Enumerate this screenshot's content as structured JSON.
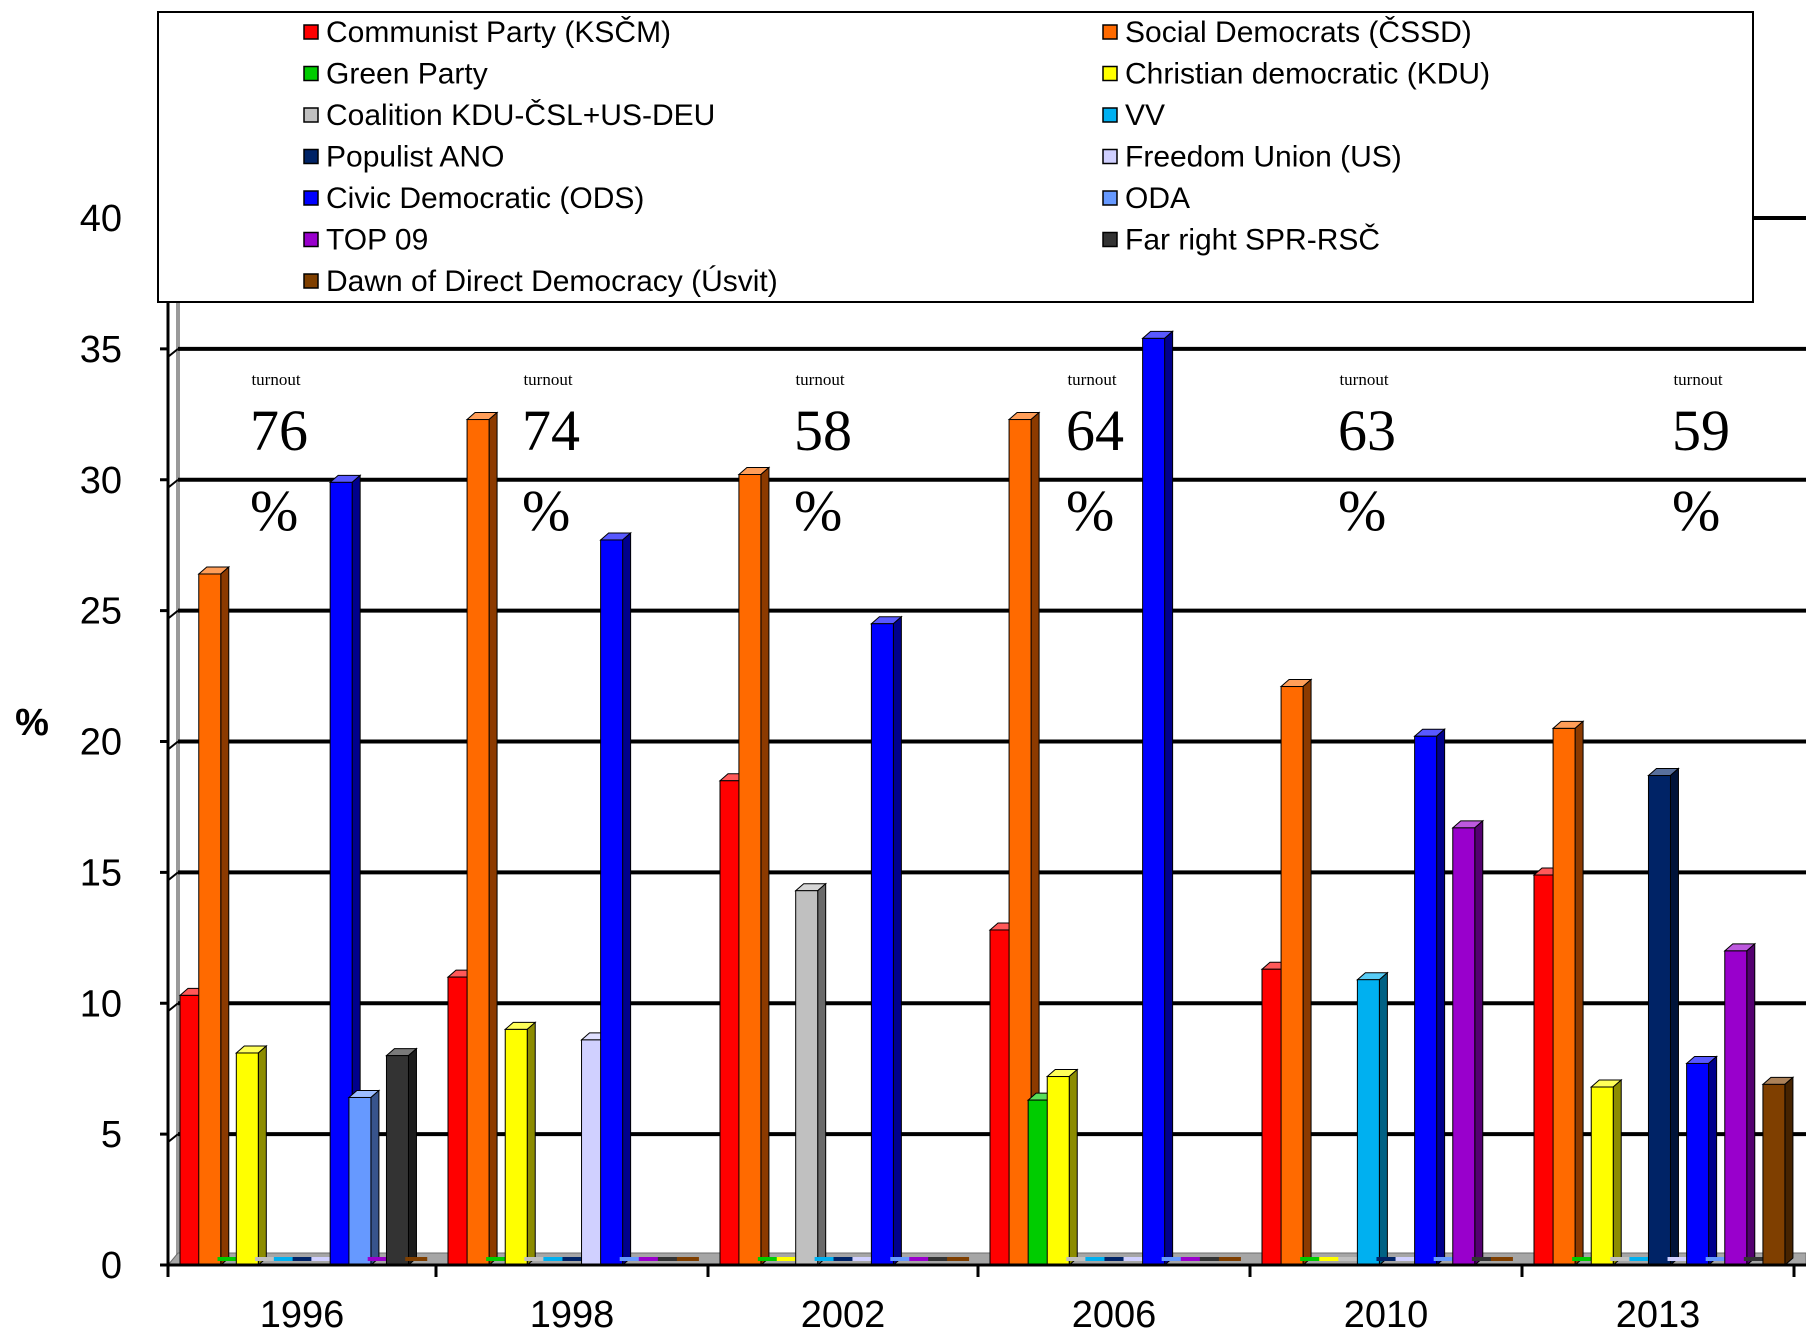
{
  "chart_data": {
    "type": "bar",
    "categories": [
      "1996",
      "1998",
      "2002",
      "2006",
      "2010",
      "2013"
    ],
    "ylabel": "%",
    "ylim": [
      0,
      40
    ],
    "yticks": [
      0,
      5,
      10,
      15,
      20,
      25,
      30,
      35,
      40
    ],
    "grid": true,
    "legend_position": "top",
    "series": [
      {
        "name": "Communist Party (KSČM)",
        "color": "#ff0000",
        "values": [
          10.3,
          11.0,
          18.5,
          12.8,
          11.3,
          14.9
        ]
      },
      {
        "name": "Social Democrats (ČSSD)",
        "color": "#ff6a00",
        "values": [
          26.4,
          32.3,
          30.2,
          32.3,
          22.1,
          20.5
        ]
      },
      {
        "name": "Green Party",
        "color": "#00cc00",
        "values": [
          0,
          0,
          0,
          6.3,
          0,
          0
        ]
      },
      {
        "name": "Christian democratic (KDU)",
        "color": "#ffff00",
        "values": [
          8.1,
          9.0,
          0,
          7.2,
          0,
          6.8
        ]
      },
      {
        "name": "Coalition KDU-ČSL+US-DEU",
        "color": "#c0c0c0",
        "values": [
          0,
          0,
          14.3,
          0,
          0,
          0
        ]
      },
      {
        "name": "VV",
        "color": "#00b0f0",
        "values": [
          0,
          0,
          0,
          0,
          10.9,
          0
        ]
      },
      {
        "name": "Populist ANO",
        "color": "#002366",
        "values": [
          0,
          0,
          0,
          0,
          0,
          18.7
        ]
      },
      {
        "name": "Freedom Union (US)",
        "color": "#d0d0ff",
        "values": [
          0,
          8.6,
          0,
          0,
          0,
          0
        ]
      },
      {
        "name": "Civic Democratic (ODS)",
        "color": "#0000ff",
        "values": [
          29.9,
          27.7,
          24.5,
          35.4,
          20.2,
          7.7
        ]
      },
      {
        "name": "ODA",
        "color": "#6699ff",
        "values": [
          6.4,
          0,
          0,
          0,
          0,
          0
        ]
      },
      {
        "name": "TOP 09",
        "color": "#9900cc",
        "values": [
          0,
          0,
          0,
          0,
          16.7,
          12.0
        ]
      },
      {
        "name": "Far right SPR-RSČ",
        "color": "#333333",
        "values": [
          8.0,
          0,
          0,
          0,
          0,
          0
        ]
      },
      {
        "name": "Dawn of Direct Democracy (Úsvit)",
        "color": "#7f3f00",
        "values": [
          0,
          0,
          0,
          0,
          0,
          6.9
        ]
      }
    ],
    "annotations": [
      {
        "label": "turnout",
        "value": "76",
        "unit": "%"
      },
      {
        "label": "turnout",
        "value": "74",
        "unit": "%"
      },
      {
        "label": "turnout",
        "value": "58",
        "unit": "%"
      },
      {
        "label": "turnout",
        "value": "64",
        "unit": "%"
      },
      {
        "label": "turnout",
        "value": "63",
        "unit": "%"
      },
      {
        "label": "turnout",
        "value": "59",
        "unit": "%"
      }
    ]
  }
}
